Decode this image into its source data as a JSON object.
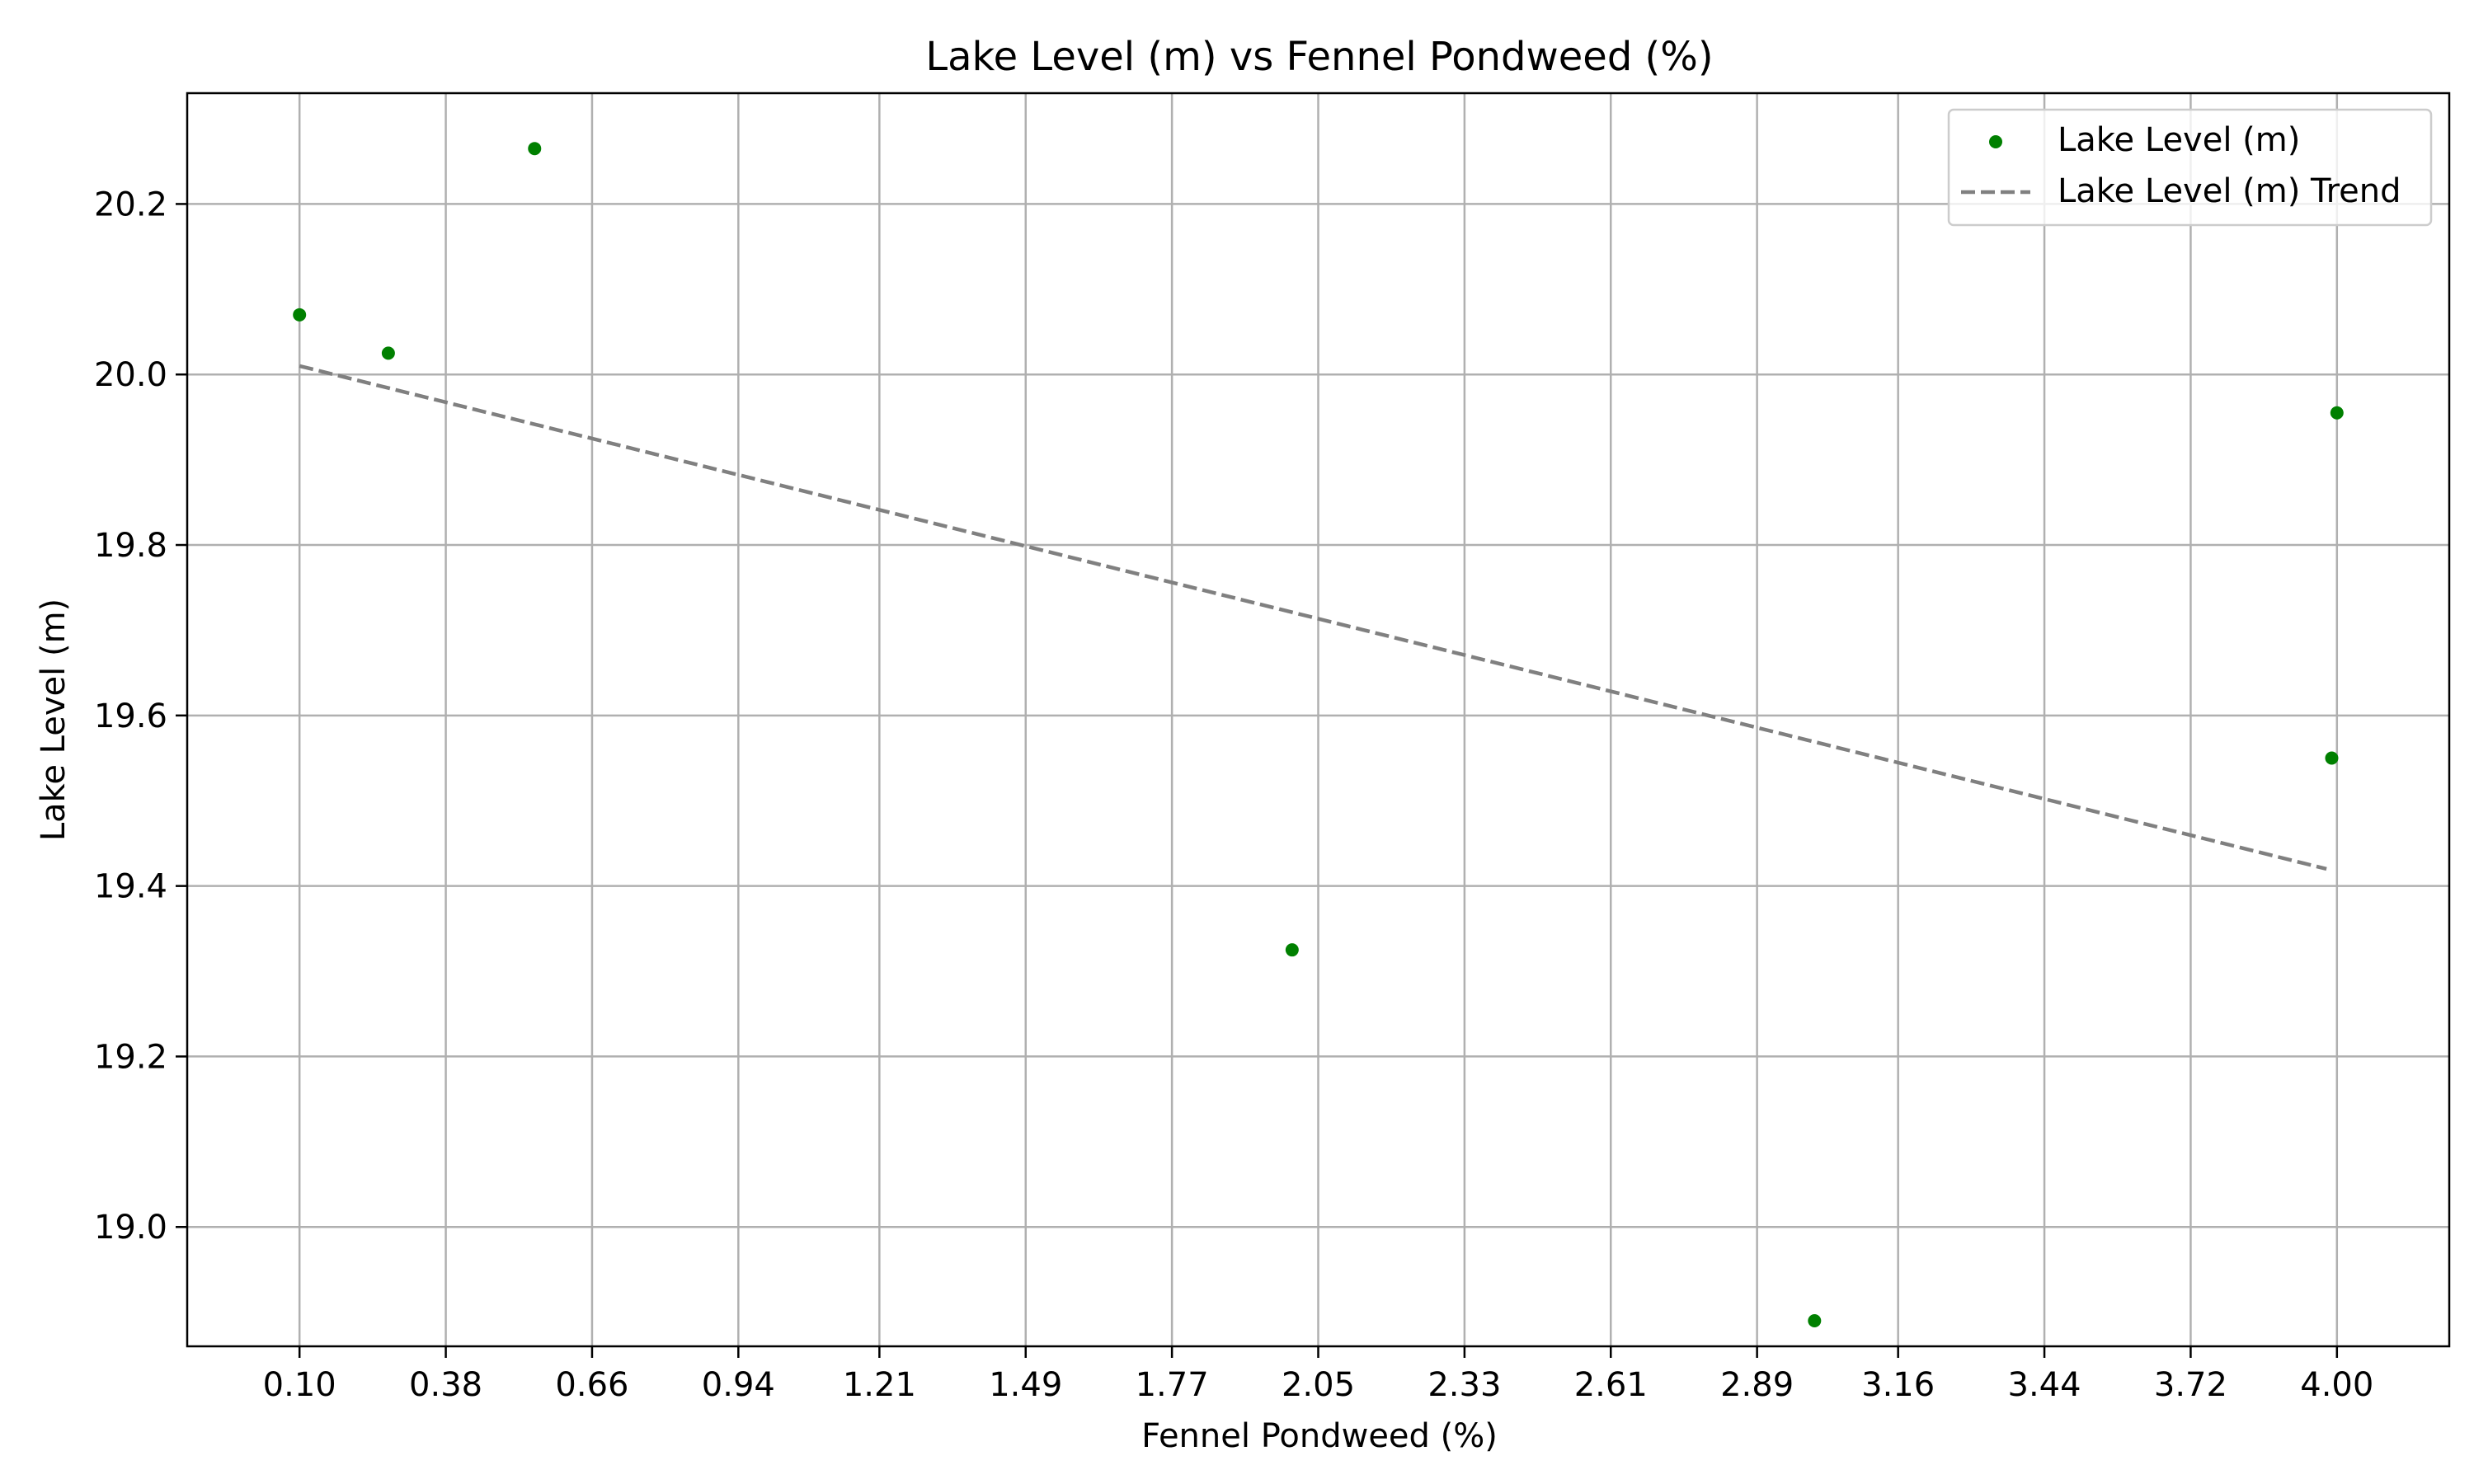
{
  "chart_data": {
    "type": "scatter",
    "title": "Lake Level (m) vs Fennel Pondweed (%)",
    "xlabel": "Fennel Pondweed (%)",
    "ylabel": "Lake Level (m)",
    "xlim": [
      -0.115,
      4.215
    ],
    "ylim": [
      18.86,
      20.33
    ],
    "x_ticks": [
      "0.10",
      "0.38",
      "0.66",
      "0.94",
      "1.21",
      "1.49",
      "1.77",
      "2.05",
      "2.33",
      "2.61",
      "2.89",
      "3.16",
      "3.44",
      "3.72",
      "4.00"
    ],
    "x_tick_values": [
      0.1,
      0.38,
      0.66,
      0.94,
      1.21,
      1.49,
      1.77,
      2.05,
      2.33,
      2.61,
      2.89,
      3.16,
      3.44,
      3.72,
      4.0
    ],
    "y_ticks": [
      "19.0",
      "19.2",
      "19.4",
      "19.6",
      "19.8",
      "20.0",
      "20.2"
    ],
    "y_tick_values": [
      19.0,
      19.2,
      19.4,
      19.6,
      19.8,
      20.0,
      20.2
    ],
    "grid": true,
    "legend_position": "top-right",
    "series": [
      {
        "name": "Lake Level (m)",
        "kind": "scatter",
        "color": "#008000",
        "points": [
          {
            "x": 0.1,
            "y": 20.07
          },
          {
            "x": 0.27,
            "y": 20.025
          },
          {
            "x": 0.55,
            "y": 20.265
          },
          {
            "x": 2.0,
            "y": 19.325
          },
          {
            "x": 3.0,
            "y": 18.89
          },
          {
            "x": 3.99,
            "y": 19.55
          },
          {
            "x": 4.0,
            "y": 19.955
          }
        ]
      },
      {
        "name": "Lake Level (m) Trend",
        "kind": "line",
        "color": "#808080",
        "dash": "dashed",
        "points": [
          {
            "x": 0.1,
            "y": 20.01
          },
          {
            "x": 3.98,
            "y": 19.42
          }
        ]
      }
    ]
  }
}
